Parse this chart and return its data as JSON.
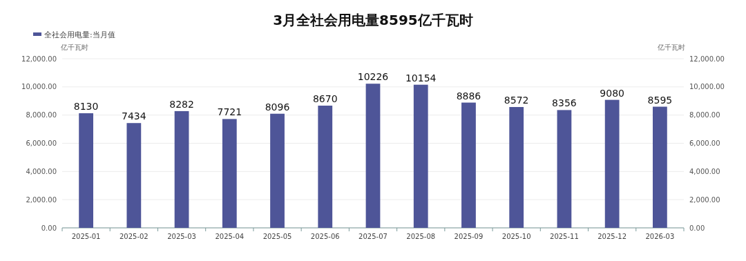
{
  "chart_data": {
    "type": "bar",
    "title": "3月全社会用电量8595亿千瓦时",
    "ylabel": "亿千瓦时",
    "y2label": "亿千瓦时",
    "categories": [
      "2025-01",
      "2025-02",
      "2025-03",
      "2025-04",
      "2025-05",
      "2025-06",
      "2025-07",
      "2025-08",
      "2025-09",
      "2025-10",
      "2025-11",
      "2025-12",
      "2026-03"
    ],
    "series": [
      {
        "name": "全社会用电量:当月值",
        "color": "#4e5598",
        "values": [
          8130,
          7434,
          8282,
          7721,
          8096,
          8670,
          10226,
          10154,
          8886,
          8572,
          8356,
          9080,
          8595
        ]
      }
    ],
    "ylim": [
      0,
      12000
    ],
    "yticks": [
      {
        "value": 0,
        "label": "0.00"
      },
      {
        "value": 2000,
        "label": "2,000.00"
      },
      {
        "value": 4000,
        "label": "4,000.00"
      },
      {
        "value": 6000,
        "label": "6,000.00"
      },
      {
        "value": 8000,
        "label": "8,000.00"
      },
      {
        "value": 10000,
        "label": "10,000.00"
      },
      {
        "value": 12000,
        "label": "12,000.00"
      }
    ],
    "y2lim": [
      0,
      12000
    ],
    "y2ticks": [
      {
        "value": 0,
        "label": "0.00"
      },
      {
        "value": 2000,
        "label": "2,000.00"
      },
      {
        "value": 4000,
        "label": "4,000.00"
      },
      {
        "value": 6000,
        "label": "6,000.00"
      },
      {
        "value": 8000,
        "label": "8,000.00"
      },
      {
        "value": 10000,
        "label": "10,000.00"
      },
      {
        "value": 12000,
        "label": "12,000.00"
      }
    ],
    "grid": "y",
    "legend": "top left",
    "data_labels": true
  }
}
